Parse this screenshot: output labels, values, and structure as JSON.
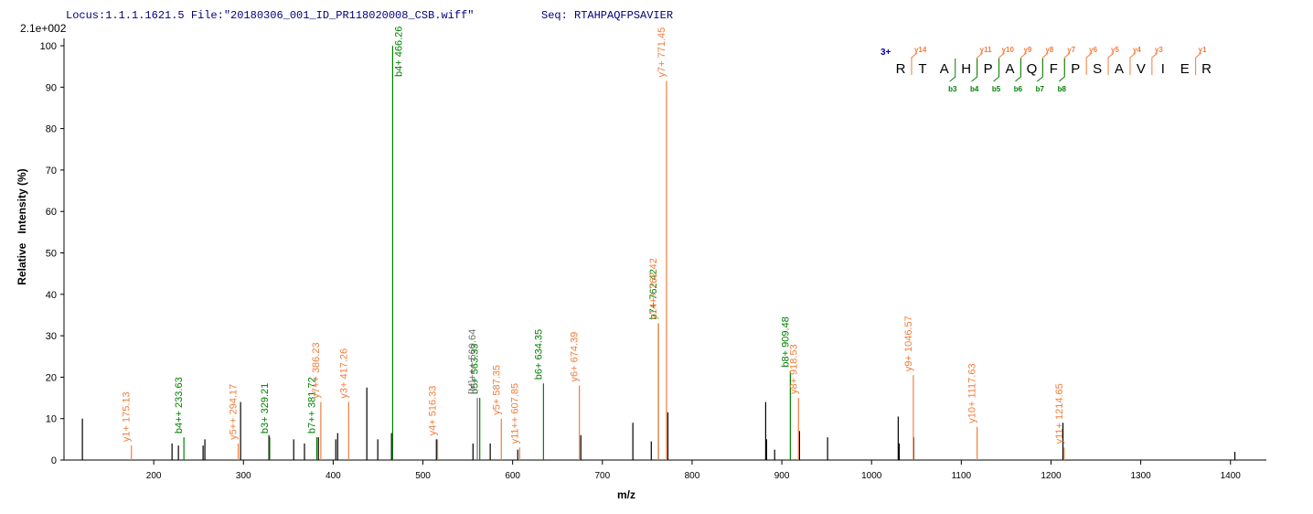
{
  "header": {
    "locus": "Locus:1.1.1.1621.5 File:\"20180306_001_ID_PR118020008_CSB.wiff\"",
    "seq": "Seq: RTAHPAQFPSAVIER"
  },
  "sequence": {
    "charge": "3+",
    "residues": [
      "R",
      "T",
      "A",
      "H",
      "P",
      "A",
      "Q",
      "F",
      "P",
      "S",
      "A",
      "V",
      "I",
      "E",
      "R"
    ],
    "y_labels": [
      "y14",
      "y11",
      "y10",
      "y9",
      "y8",
      "y7",
      "y6",
      "y5",
      "y4",
      "y3",
      "y1"
    ],
    "b_labels": [
      "b3",
      "b4",
      "b5",
      "b6",
      "b7",
      "b8"
    ]
  },
  "chart_data": {
    "type": "spectrum",
    "y_max_label": "2.1e+002",
    "x_label": "m/z",
    "y_label": "Relative   Intensity (%)",
    "xlim": [
      100,
      1440
    ],
    "ylim": [
      0,
      100
    ],
    "xticks": [
      200,
      300,
      400,
      500,
      600,
      700,
      800,
      900,
      1000,
      1100,
      1200,
      1300,
      1400
    ],
    "yticks": [
      0,
      10,
      20,
      30,
      40,
      50,
      60,
      70,
      80,
      90,
      100
    ],
    "series": [
      {
        "color": "#000000",
        "x": [
          120.5,
          220.4,
          227.5,
          255,
          257,
          296.8,
          328.4,
          356,
          368,
          383.5,
          402.9,
          405,
          437.5,
          449.7,
          465,
          515,
          555.8,
          575,
          605.7,
          676,
          734,
          754.5,
          773,
          882,
          883,
          892,
          919.7,
          951,
          1029.7,
          1030.8,
          1047,
          1213.3,
          1404.9
        ],
        "values": [
          10,
          4,
          3.5,
          3.5,
          5,
          14,
          6,
          5,
          4,
          5.5,
          5,
          6.5,
          17.5,
          5,
          6.5,
          5,
          4,
          4,
          2.5,
          6,
          9,
          4.5,
          11.5,
          14,
          5,
          2.5,
          7,
          5.5,
          10.5,
          4,
          5.5,
          9,
          2
        ]
      },
      {
        "color": "#008000",
        "x": [
          233.63,
          329.21,
          381.72,
          466.26,
          563.33,
          634.35,
          762.42,
          909.48
        ],
        "values": [
          5.5,
          5.5,
          5.5,
          100,
          15,
          18.5,
          33,
          21.5
        ],
        "labels": [
          "b4++ 233.63",
          "b3+ 329.21",
          "b7++ 381.72",
          "b4+ 466.26",
          "b5+ 563.33",
          "b6+ 634.35",
          "b7+ 762.42",
          "b8+ 909.48"
        ]
      },
      {
        "color": "#f07d3c",
        "x": [
          175.13,
          294.17,
          386.23,
          417.26,
          516.33,
          587.35,
          607.85,
          674.39,
          762.42,
          771.45,
          918.53,
          1046.57,
          1117.63,
          1214.65
        ],
        "values": [
          3.5,
          4,
          14,
          14,
          5,
          10,
          3,
          18,
          33,
          91.5,
          15,
          20.5,
          8,
          3
        ],
        "labels": [
          "y1+ 175.13",
          "y5++ 294.17",
          "y7++ 386.23",
          "y3+ 417.26",
          "y4+ 516.33",
          "y5+ 587.35",
          "y11++ 607.85",
          "y6+ 674.39",
          "y14++ 762.42",
          "y7+ 771.45",
          "y8+ 918.53",
          "y9+ 1046.57",
          "y10+ 1117.63",
          "y11+ 1214.65"
        ]
      },
      {
        "color": "#707070",
        "x": [
          560.64
        ],
        "values": [
          15
        ],
        "labels": [
          "[M]+++ 560.64"
        ]
      }
    ]
  }
}
